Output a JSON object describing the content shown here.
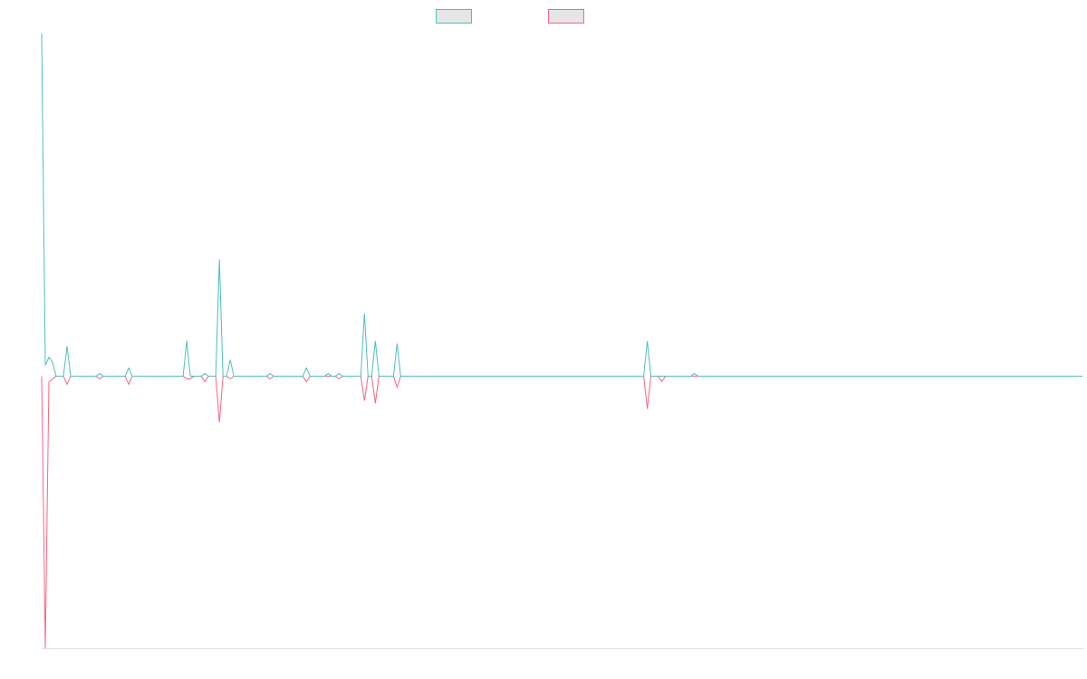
{
  "chart_data": {
    "type": "line",
    "ylim": [
      -1,
      1.26
    ],
    "series": [
      {
        "color": "#4bc0c0",
        "values": [
          1.26,
          0.04,
          0.07,
          0.05,
          0,
          0,
          0,
          0.11,
          0,
          0,
          0,
          0,
          0,
          0,
          0,
          0,
          0.01,
          0,
          0,
          0,
          0,
          0,
          0,
          0,
          0.03,
          0,
          0,
          0,
          0,
          0,
          0,
          0,
          0,
          0,
          0,
          0,
          0,
          0,
          0,
          0,
          0.13,
          0,
          0,
          0,
          0,
          0.01,
          0,
          0,
          0,
          0.43,
          0,
          0,
          0.06,
          0,
          0,
          0,
          0,
          0,
          0,
          0,
          0,
          0,
          0,
          0.01,
          0,
          0,
          0,
          0,
          0,
          0,
          0,
          0,
          0,
          0.03,
          0,
          0,
          0,
          0,
          0,
          0.01,
          0,
          0,
          0.01,
          0,
          0,
          0,
          0,
          0,
          0,
          0.23,
          0,
          0,
          0.13,
          0,
          0,
          0,
          0,
          0,
          0.12,
          0,
          0,
          0,
          0,
          0,
          0,
          0,
          0,
          0,
          0,
          0,
          0,
          0,
          0,
          0,
          0,
          0,
          0,
          0,
          0,
          0,
          0,
          0,
          0,
          0,
          0,
          0,
          0,
          0,
          0,
          0,
          0,
          0,
          0,
          0,
          0,
          0,
          0,
          0,
          0,
          0,
          0,
          0,
          0,
          0,
          0,
          0,
          0,
          0,
          0,
          0,
          0,
          0,
          0,
          0,
          0,
          0,
          0,
          0,
          0,
          0,
          0,
          0,
          0,
          0,
          0,
          0,
          0,
          0.13,
          0,
          0,
          0,
          0,
          0,
          0,
          0,
          0,
          0,
          0,
          0,
          0,
          0.01,
          0,
          0,
          0,
          0,
          0,
          0,
          0,
          0,
          0,
          0,
          0,
          0,
          0,
          0,
          0,
          0,
          0,
          0,
          0,
          0,
          0,
          0,
          0,
          0,
          0,
          0,
          0,
          0,
          0,
          0,
          0,
          0,
          0,
          0,
          0,
          0,
          0,
          0,
          0,
          0,
          0,
          0,
          0,
          0,
          0,
          0,
          0,
          0,
          0,
          0,
          0,
          0,
          0,
          0,
          0,
          0,
          0,
          0,
          0,
          0,
          0,
          0,
          0,
          0,
          0,
          0,
          0,
          0,
          0,
          0,
          0,
          0,
          0,
          0,
          0,
          0,
          0,
          0,
          0,
          0,
          0,
          0,
          0,
          0,
          0,
          0,
          0,
          0,
          0,
          0,
          0,
          0,
          0,
          0,
          0,
          0,
          0,
          0,
          0,
          0,
          0,
          0,
          0,
          0,
          0,
          0,
          0
        ]
      },
      {
        "color": "#ff6384",
        "values": [
          0,
          -1,
          -0.02,
          -0.01,
          0,
          0,
          0,
          -0.03,
          0,
          0,
          0,
          0,
          0,
          0,
          0,
          0,
          -0.01,
          0,
          0,
          0,
          0,
          0,
          0,
          0,
          -0.03,
          0,
          0,
          0,
          0,
          0,
          0,
          0,
          0,
          0,
          0,
          0,
          0,
          0,
          0,
          0,
          -0.01,
          -0.01,
          0,
          0,
          0,
          -0.02,
          0,
          0,
          0,
          -0.17,
          0,
          0,
          -0.01,
          0,
          0,
          0,
          0,
          0,
          0,
          0,
          0,
          0,
          0,
          -0.01,
          0,
          0,
          0,
          0,
          0,
          0,
          0,
          0,
          0,
          -0.02,
          0,
          0,
          0,
          0,
          0,
          0,
          0,
          0,
          -0.01,
          0,
          0,
          0,
          0,
          0,
          0,
          -0.09,
          0,
          0,
          -0.1,
          0,
          0,
          0,
          0,
          0,
          -0.04,
          0,
          0,
          0,
          0,
          0,
          0,
          0,
          0,
          0,
          0,
          0,
          0,
          0,
          0,
          0,
          0,
          0,
          0,
          0,
          0,
          0,
          0,
          0,
          0,
          0,
          0,
          0,
          0,
          0,
          0,
          0,
          0,
          0,
          0,
          0,
          0,
          0,
          0,
          0,
          0,
          0,
          0,
          0,
          0,
          0,
          0,
          0,
          0,
          0,
          0,
          0,
          0,
          0,
          0,
          0,
          0,
          0,
          0,
          0,
          0,
          0,
          0,
          0,
          0,
          0,
          0,
          0,
          0,
          -0.12,
          0,
          0,
          0,
          -0.02,
          0,
          0,
          0,
          0,
          0,
          0,
          0,
          0,
          0,
          0,
          0,
          0,
          0,
          0,
          0,
          0,
          0,
          0,
          0,
          0,
          0,
          0,
          0,
          0,
          0,
          0,
          0,
          0,
          0,
          0,
          0,
          0,
          0,
          0,
          0,
          0,
          0,
          0,
          0,
          0,
          0,
          0,
          0,
          0,
          0,
          0,
          0,
          0,
          0,
          0,
          0,
          0,
          0,
          0,
          0,
          0,
          0,
          0,
          0,
          0,
          0,
          0,
          0,
          0,
          0,
          0,
          0,
          0,
          0,
          0,
          0,
          0,
          0,
          0,
          0,
          0,
          0,
          0,
          0,
          0,
          0,
          0,
          0,
          0,
          0,
          0,
          0,
          0,
          0,
          0,
          0,
          0,
          0,
          0,
          0,
          0,
          0,
          0,
          0,
          0,
          0,
          0,
          0,
          0,
          0,
          0,
          0,
          0,
          0,
          0,
          0,
          0,
          0,
          0,
          0,
          0
        ]
      }
    ]
  }
}
